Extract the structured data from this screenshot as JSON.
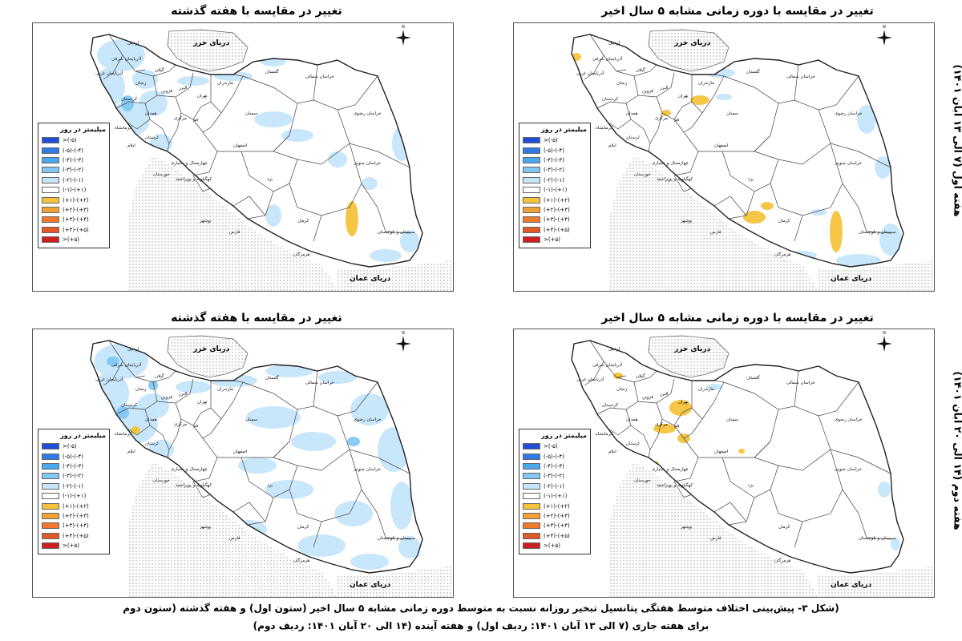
{
  "row_labels": [
    "هفته اول (۷ الی ۱۳ آبان ۱۴۰۱)",
    "هفته دوم (۱۴ الی ۲۰ آبان ۱۴۰۱)"
  ],
  "column_titles": {
    "five_year": "تغییر در مقایسه با دوره زمانی مشابه ۵ سال اخیر",
    "last_week": "تغییر در مقایسه با هفته گذشته"
  },
  "seas": {
    "caspian": "دریای خزر",
    "oman": "دریای عمان"
  },
  "provinces": {
    "ardabil": "اردبیل",
    "east_az": "آذربایجان شرقی",
    "west_az": "آذربایجان غربی",
    "zanjan": "زنجان",
    "gilan": "گیلان",
    "qazvin": "قزوین",
    "mazandaran": "مازندران",
    "golestan": "گلستان",
    "n_khorasan": "خراسان شمالی",
    "razavi": "خراسان رضوی",
    "s_khorasan": "خراسان جنوبی",
    "tehran": "تهران",
    "alborz": "البرز",
    "semnan": "سمنان",
    "qom": "قم",
    "markazi": "مرکزی",
    "hamedan": "همدان",
    "kurdistan": "کردستان",
    "kermanshah": "کرمانشاه",
    "lorestan": "لرستان",
    "ilam": "ایلام",
    "isfahan": "اصفهان",
    "chb": "چهارمحال و بختیاری",
    "khuzestan": "خوزستان",
    "kb": "کهگیلویه و بویراحمد",
    "yazd": "یزد",
    "kerman": "کرمان",
    "fars": "فارس",
    "bushehr": "بوشهر",
    "hormozgan": "هرمزگان",
    "sistan": "سیستان و بلوچستان"
  },
  "legend": {
    "title": "میلیمتر در روز",
    "items": [
      {
        "label": ">(-۵)",
        "color": "#1f4fd6"
      },
      {
        "label": "(-۵)-(-۴)",
        "color": "#2e7be6"
      },
      {
        "label": "(-۴)-(-۳)",
        "color": "#4aa8ef"
      },
      {
        "label": "(-۳)-(-۲)",
        "color": "#83c8f2"
      },
      {
        "label": "(-۲)-(-۱)",
        "color": "#c5e6fa"
      },
      {
        "label": "(-۱)-(+۱)",
        "color": "#ffffff"
      },
      {
        "label": "(+۱)-(+۲)",
        "color": "#f5c43c"
      },
      {
        "label": "(+۲)-(+۳)",
        "color": "#f3a23a"
      },
      {
        "label": "(+۳)-(+۴)",
        "color": "#ee7a30"
      },
      {
        "label": "(+۴)-(+۵)",
        "color": "#e05a28"
      },
      {
        "label": ">(+۵)",
        "color": "#cc2020"
      }
    ]
  },
  "colors": {
    "light_blue": "#c5e6fa",
    "mid_blue": "#83c8f2",
    "yellow": "#f5c43c",
    "sea_dots": "#999999"
  },
  "caption": {
    "line1": "(شکل ۳- پیش‌بینی اختلاف متوسط هفتگی پتانسیل تبخیر روزانه نسبت به متوسط دوره زمانی مشابه ۵ سال اخیر (ستون اول) و هفته گذشته (ستون دوم",
    "line2": "برای هفته جاری (۷ الی ۱۳ آبان ۱۴۰۱: ردیف اول) و هفته آینده (۱۴ الی ۲۰ آبان ۱۴۰۱: ردیف دوم)"
  }
}
